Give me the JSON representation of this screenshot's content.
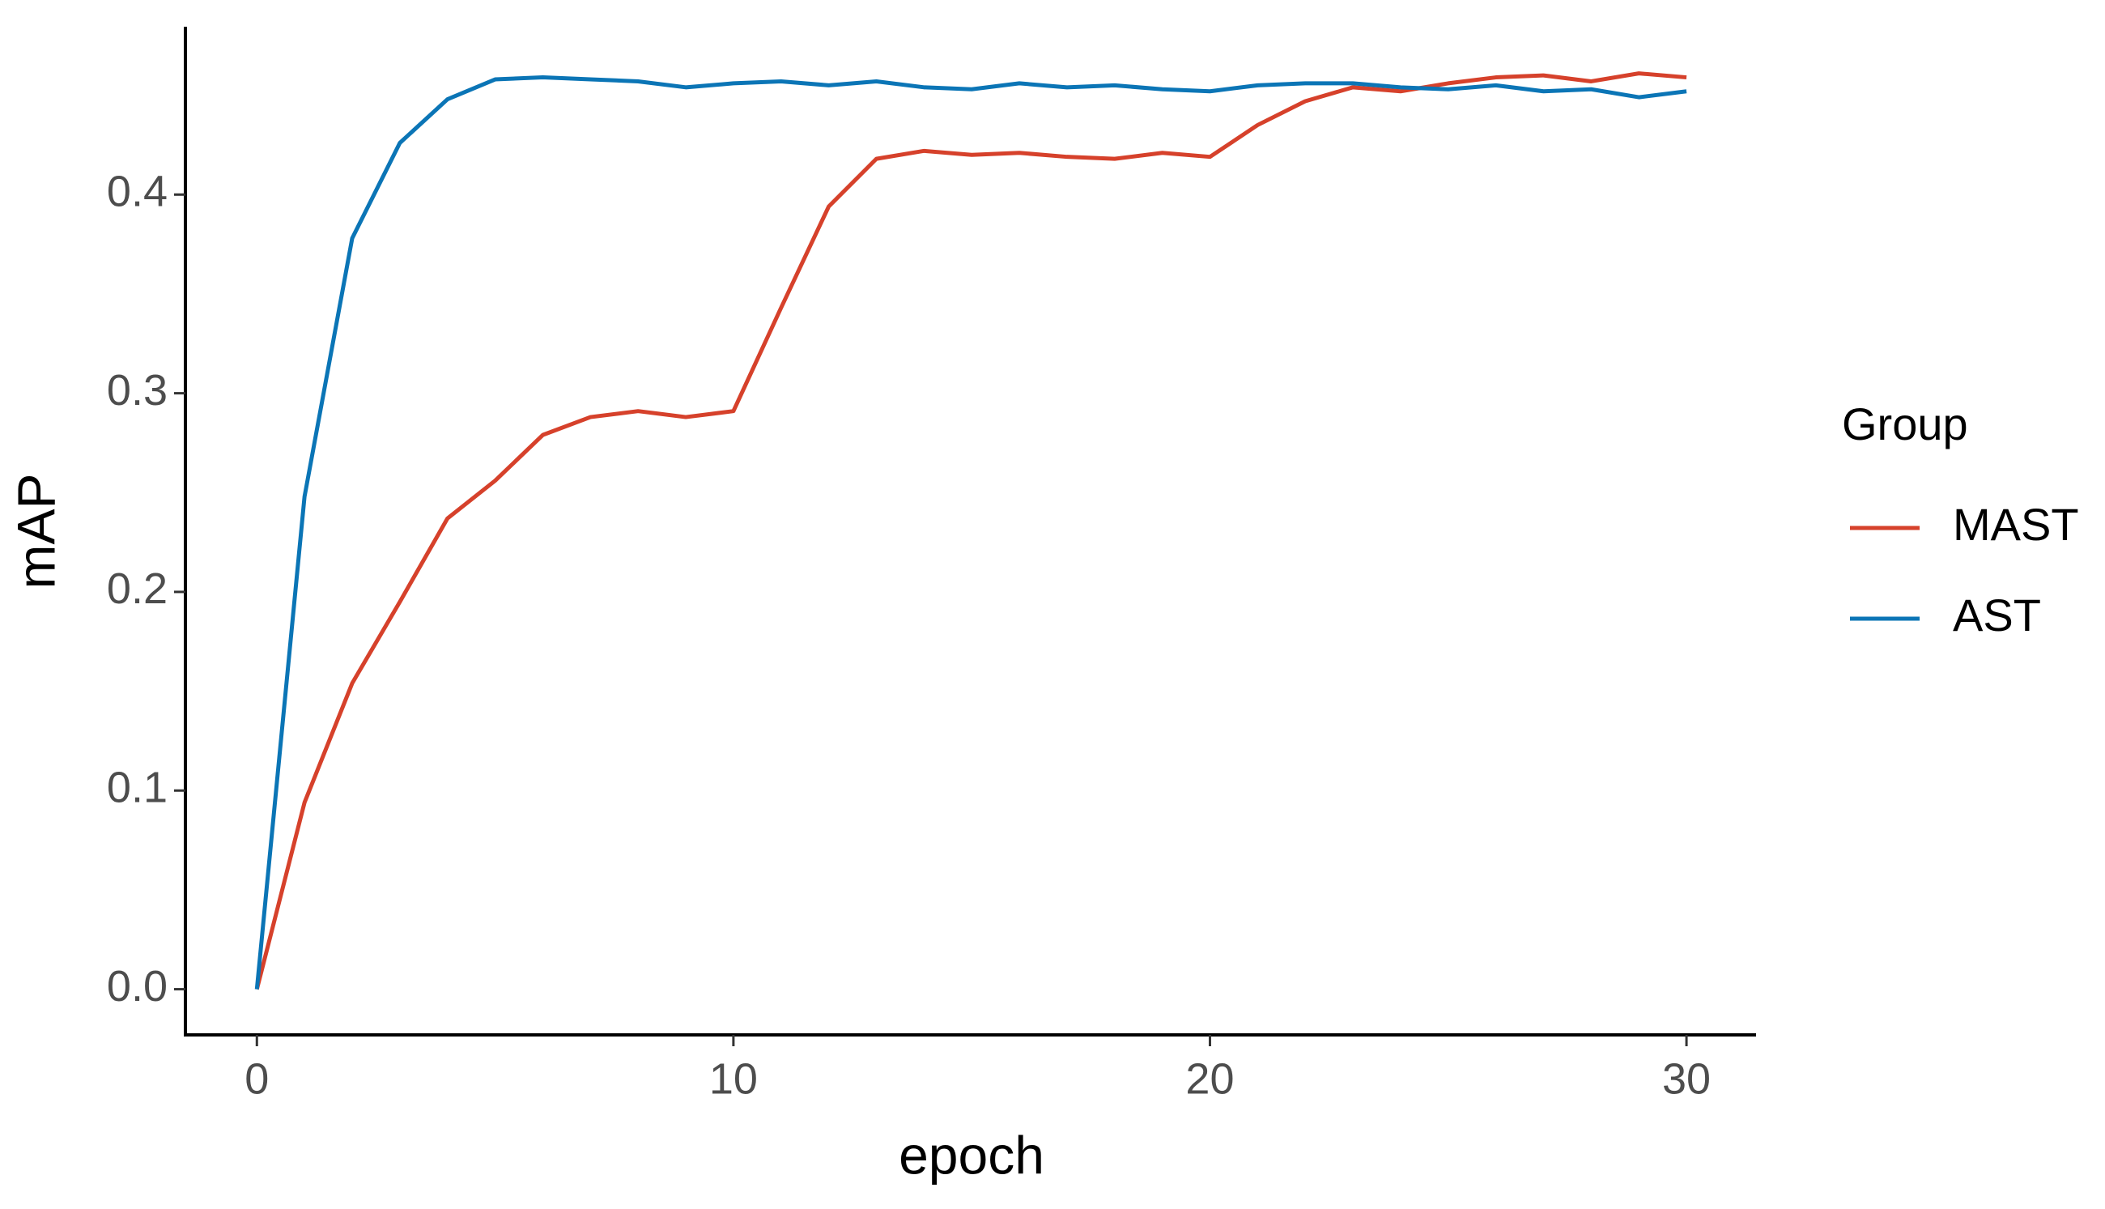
{
  "chart_data": {
    "type": "line",
    "x_label": "epoch",
    "y_label": "mAP",
    "legend_title": "Group",
    "legend_position": "right",
    "x": [
      0,
      1,
      2,
      3,
      4,
      5,
      6,
      7,
      8,
      9,
      10,
      11,
      12,
      13,
      14,
      15,
      16,
      17,
      18,
      19,
      20,
      21,
      22,
      23,
      24,
      25,
      26,
      27,
      28,
      29,
      30
    ],
    "series": [
      {
        "name": "MAST",
        "color": "#d6412b",
        "values": [
          0,
          0.094,
          0.154,
          0.195,
          0.237,
          0.256,
          0.279,
          0.288,
          0.291,
          0.288,
          0.291,
          0.343,
          0.394,
          0.418,
          0.422,
          0.42,
          0.421,
          0.419,
          0.418,
          0.421,
          0.419,
          0.435,
          0.447,
          0.454,
          0.452,
          0.456,
          0.459,
          0.46,
          0.457,
          0.461,
          0.459
        ]
      },
      {
        "name": "AST",
        "color": "#0b75b6",
        "values": [
          0,
          0.248,
          0.378,
          0.426,
          0.448,
          0.458,
          0.459,
          0.458,
          0.457,
          0.454,
          0.456,
          0.457,
          0.455,
          0.457,
          0.454,
          0.453,
          0.456,
          0.454,
          0.455,
          0.453,
          0.452,
          0.455,
          0.456,
          0.456,
          0.454,
          0.453,
          0.455,
          0.452,
          0.453,
          0.449,
          0.452
        ]
      }
    ],
    "xlim": [
      -1.5,
      31.46
    ],
    "ylim": [
      -0.023,
      0.4845
    ],
    "xticks": [
      0,
      10,
      20,
      30
    ],
    "yticks": [
      {
        "value": 0,
        "label": "0.0"
      },
      0.1,
      0.2,
      0.3,
      0.4
    ],
    "grid": false
  }
}
